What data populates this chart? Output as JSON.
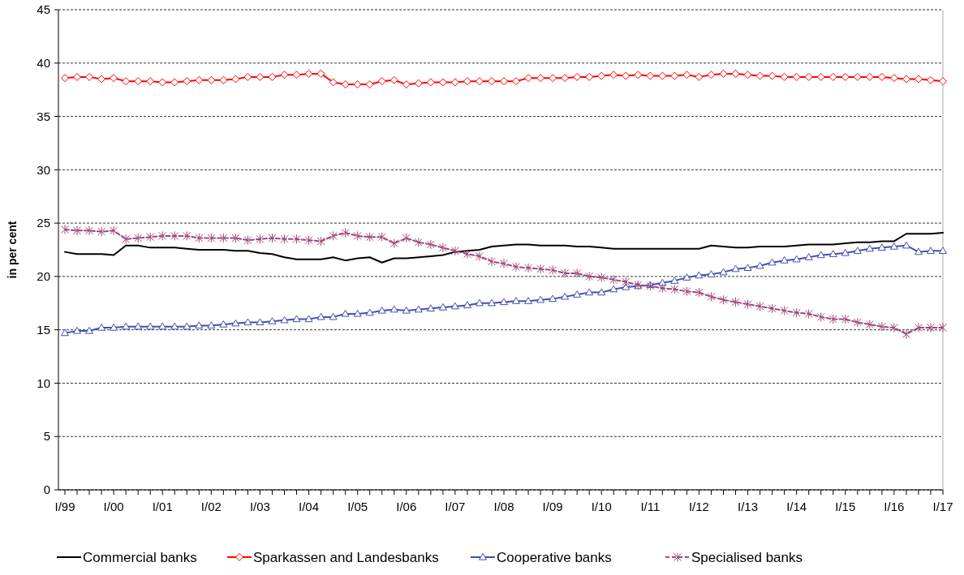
{
  "chart_data": {
    "type": "line",
    "ylabel": "in per cent",
    "ylim": [
      0,
      45
    ],
    "yticks": [
      0,
      5,
      10,
      15,
      20,
      25,
      30,
      35,
      40,
      45
    ],
    "grid": "y",
    "legend": "bottom",
    "categories": [
      "I/99",
      null,
      null,
      null,
      "I/00",
      null,
      null,
      null,
      "I/01",
      null,
      null,
      null,
      "I/02",
      null,
      null,
      null,
      "I/03",
      null,
      null,
      null,
      "I/04",
      null,
      null,
      null,
      "I/05",
      null,
      null,
      null,
      "I/06",
      null,
      null,
      null,
      "I/07",
      null,
      null,
      null,
      "I/08",
      null,
      null,
      null,
      "I/09",
      null,
      null,
      null,
      "I/10",
      null,
      null,
      null,
      "I/11",
      null,
      null,
      null,
      "I/12",
      null,
      null,
      null,
      "I/13",
      null,
      null,
      null,
      "I/14",
      null,
      null,
      null,
      "I/15",
      null,
      null,
      null,
      "I/16",
      null,
      null,
      null,
      "I/17"
    ],
    "series": [
      {
        "name": "Commercial banks",
        "color": "#000000",
        "marker": "none",
        "line_style": "solid",
        "values": [
          22.3,
          22.1,
          22.1,
          22.1,
          22.0,
          22.9,
          22.9,
          22.7,
          22.7,
          22.7,
          22.6,
          22.5,
          22.5,
          22.5,
          22.4,
          22.4,
          22.2,
          22.1,
          21.8,
          21.6,
          21.6,
          21.6,
          21.8,
          21.5,
          21.7,
          21.8,
          21.3,
          21.7,
          21.7,
          21.8,
          21.9,
          22.0,
          22.3,
          22.4,
          22.5,
          22.8,
          22.9,
          23.0,
          23.0,
          22.9,
          22.9,
          22.9,
          22.8,
          22.8,
          22.7,
          22.6,
          22.6,
          22.6,
          22.6,
          22.6,
          22.6,
          22.6,
          22.6,
          22.9,
          22.8,
          22.7,
          22.7,
          22.8,
          22.8,
          22.8,
          22.9,
          23.0,
          23.0,
          23.0,
          23.1,
          23.2,
          23.2,
          23.3,
          23.3,
          24.0,
          24.0,
          24.0,
          24.1
        ]
      },
      {
        "name": "Sparkassen and Landesbanks",
        "color": "#ff0000",
        "marker": "diamond",
        "line_style": "solid",
        "values": [
          38.6,
          38.7,
          38.7,
          38.5,
          38.6,
          38.3,
          38.3,
          38.3,
          38.2,
          38.2,
          38.3,
          38.4,
          38.4,
          38.4,
          38.5,
          38.7,
          38.7,
          38.7,
          38.9,
          38.9,
          39.0,
          39.0,
          38.2,
          38.0,
          38.0,
          38.0,
          38.3,
          38.4,
          38.0,
          38.1,
          38.2,
          38.2,
          38.2,
          38.3,
          38.3,
          38.3,
          38.3,
          38.3,
          38.6,
          38.6,
          38.6,
          38.6,
          38.7,
          38.7,
          38.8,
          38.9,
          38.8,
          38.9,
          38.8,
          38.8,
          38.8,
          38.9,
          38.7,
          38.9,
          39.0,
          39.0,
          38.9,
          38.8,
          38.8,
          38.7,
          38.7,
          38.7,
          38.7,
          38.7,
          38.7,
          38.7,
          38.7,
          38.7,
          38.6,
          38.5,
          38.5,
          38.4,
          38.3
        ]
      },
      {
        "name": "Cooperative banks",
        "color": "#4050b0",
        "marker": "triangle",
        "line_style": "solid",
        "values": [
          14.7,
          14.9,
          14.9,
          15.2,
          15.2,
          15.3,
          15.3,
          15.3,
          15.3,
          15.3,
          15.3,
          15.4,
          15.4,
          15.5,
          15.6,
          15.7,
          15.7,
          15.8,
          15.9,
          16.0,
          16.0,
          16.2,
          16.2,
          16.5,
          16.5,
          16.6,
          16.8,
          16.9,
          16.8,
          16.9,
          17.0,
          17.1,
          17.2,
          17.3,
          17.5,
          17.5,
          17.6,
          17.7,
          17.7,
          17.8,
          17.9,
          18.1,
          18.3,
          18.5,
          18.5,
          18.8,
          19.0,
          19.1,
          19.2,
          19.4,
          19.6,
          19.9,
          20.1,
          20.2,
          20.4,
          20.7,
          20.8,
          21.0,
          21.3,
          21.5,
          21.6,
          21.8,
          22.0,
          22.1,
          22.2,
          22.4,
          22.6,
          22.7,
          22.8,
          22.9,
          22.3,
          22.4,
          22.4
        ]
      },
      {
        "name": "Specialised banks",
        "color": "#a0487a",
        "marker": "cross",
        "line_style": "dashed",
        "values": [
          24.4,
          24.3,
          24.3,
          24.2,
          24.3,
          23.5,
          23.6,
          23.7,
          23.8,
          23.8,
          23.8,
          23.6,
          23.6,
          23.6,
          23.6,
          23.4,
          23.5,
          23.6,
          23.5,
          23.5,
          23.4,
          23.3,
          23.8,
          24.1,
          23.8,
          23.7,
          23.7,
          23.1,
          23.6,
          23.2,
          23.0,
          22.7,
          22.4,
          22.1,
          21.9,
          21.4,
          21.2,
          20.9,
          20.8,
          20.7,
          20.6,
          20.3,
          20.3,
          20.0,
          19.9,
          19.7,
          19.5,
          19.2,
          19.1,
          18.9,
          18.8,
          18.6,
          18.5,
          18.1,
          17.8,
          17.6,
          17.4,
          17.2,
          17.0,
          16.8,
          16.6,
          16.5,
          16.2,
          16.0,
          16.0,
          15.7,
          15.5,
          15.3,
          15.2,
          14.6,
          15.2,
          15.2,
          15.2
        ]
      }
    ]
  }
}
